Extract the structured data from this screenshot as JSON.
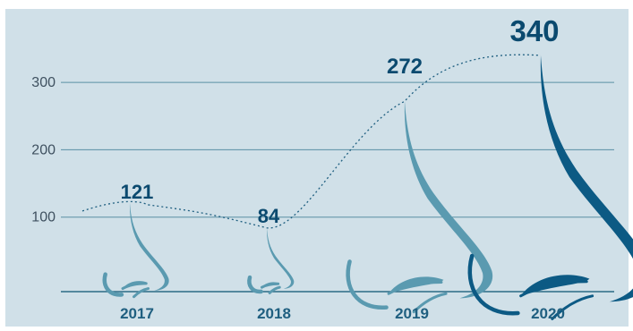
{
  "chart_data": {
    "type": "line",
    "categories": [
      "2017",
      "2018",
      "2019",
      "2020"
    ],
    "values": [
      121,
      84,
      272,
      340
    ],
    "data_labels": [
      "121",
      "84",
      "272",
      "340"
    ],
    "y_ticks": [
      {
        "value": 100,
        "label": "100"
      },
      {
        "value": 200,
        "label": "200"
      },
      {
        "value": 300,
        "label": "300"
      }
    ],
    "ylim": [
      0,
      370
    ],
    "grid": true,
    "line_style": "dotted",
    "decoration": "nose-profile-icons",
    "colors": {
      "background": "#d0e0e8",
      "grid": "#5a8fa4",
      "line": "#1f5f80",
      "label_light": "#1f5f80",
      "label_dark": "#0b4a6f",
      "nose_light": "#5a9ab0",
      "nose_dark": "#0c5a84"
    }
  }
}
